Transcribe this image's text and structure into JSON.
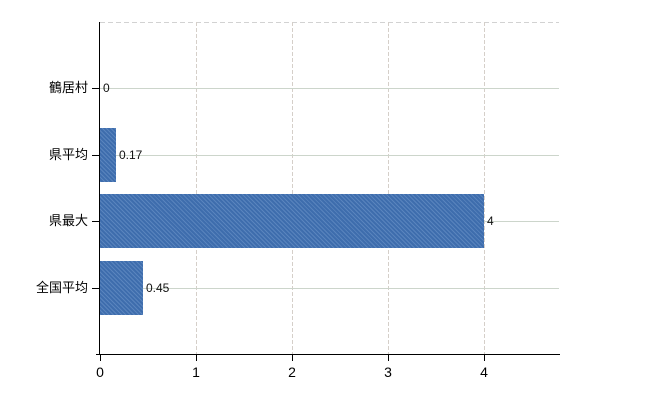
{
  "chart_data": {
    "type": "bar",
    "orientation": "horizontal",
    "title": "",
    "xlabel": "",
    "ylabel": "",
    "categories": [
      "鶴居村",
      "県平均",
      "県最大",
      "全国平均"
    ],
    "values": [
      0,
      0.17,
      4,
      0.45
    ],
    "value_labels": [
      "0",
      "0.17",
      "4",
      "0.45"
    ],
    "x_ticks": [
      "0",
      "1",
      "2",
      "3",
      "4"
    ],
    "x_tick_values": [
      0,
      1,
      2,
      3,
      4
    ],
    "xlim": [
      0,
      4.8
    ],
    "grid": "on",
    "legend": "none",
    "colors": {
      "bar": "#3e6dad",
      "axis": "#000000",
      "horizontal_grid": "#ccd5cb",
      "vertical_grid": "#d5cfc9",
      "top_border": "#d2d2d2",
      "background": "#ffffff",
      "text": "#000000"
    }
  }
}
